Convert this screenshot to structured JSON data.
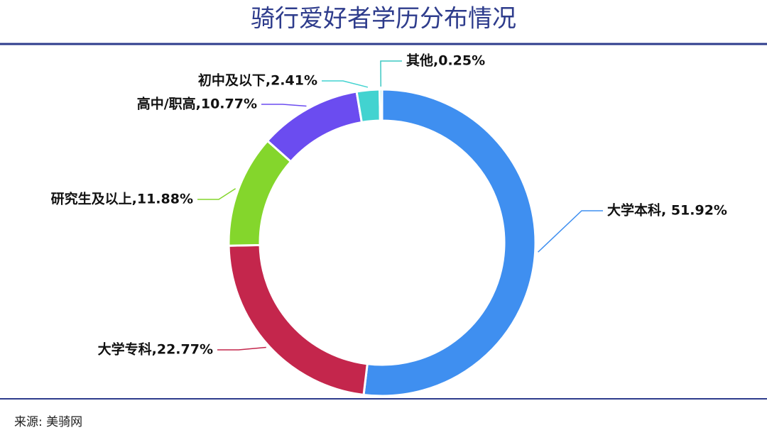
{
  "chart_data": {
    "type": "donut",
    "title": "骑行爱好者学历分布情况",
    "source": "来源: 美骑网",
    "values": [
      51.92,
      22.77,
      11.88,
      10.77,
      2.41,
      0.25
    ],
    "value_labels": [
      "大学本科, 51.92%",
      "大学专科,22.77%",
      "研究生及以上,11.88%",
      "高中/职高,10.77%",
      "初中及以下,2.41%",
      "其他,0.25%"
    ],
    "colors": [
      "#3f8ff0",
      "#c4264c",
      "#84d62c",
      "#6b4cf0",
      "#42d3d0",
      "#3cc8c2"
    ]
  }
}
